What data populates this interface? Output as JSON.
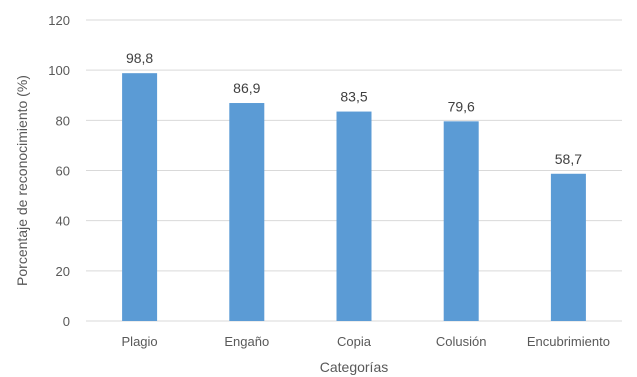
{
  "chart_data": {
    "type": "bar",
    "categories": [
      "Plagio",
      "Engaño",
      "Copia",
      "Colusión",
      "Encubrimiento"
    ],
    "series": [
      {
        "values": [
          98.8,
          86.9,
          83.5,
          79.6,
          58.7
        ]
      }
    ],
    "data_labels": [
      "98,8",
      "86,9",
      "83,5",
      "79,6",
      "58,7"
    ],
    "xlabel": "Categorías",
    "ylabel": "Porcentaje de reconocimiento (%)",
    "ylim": [
      0,
      120
    ],
    "yticks": [
      0,
      20,
      40,
      60,
      80,
      100,
      120
    ],
    "grid": true,
    "bar_color": "#5b9bd5"
  }
}
